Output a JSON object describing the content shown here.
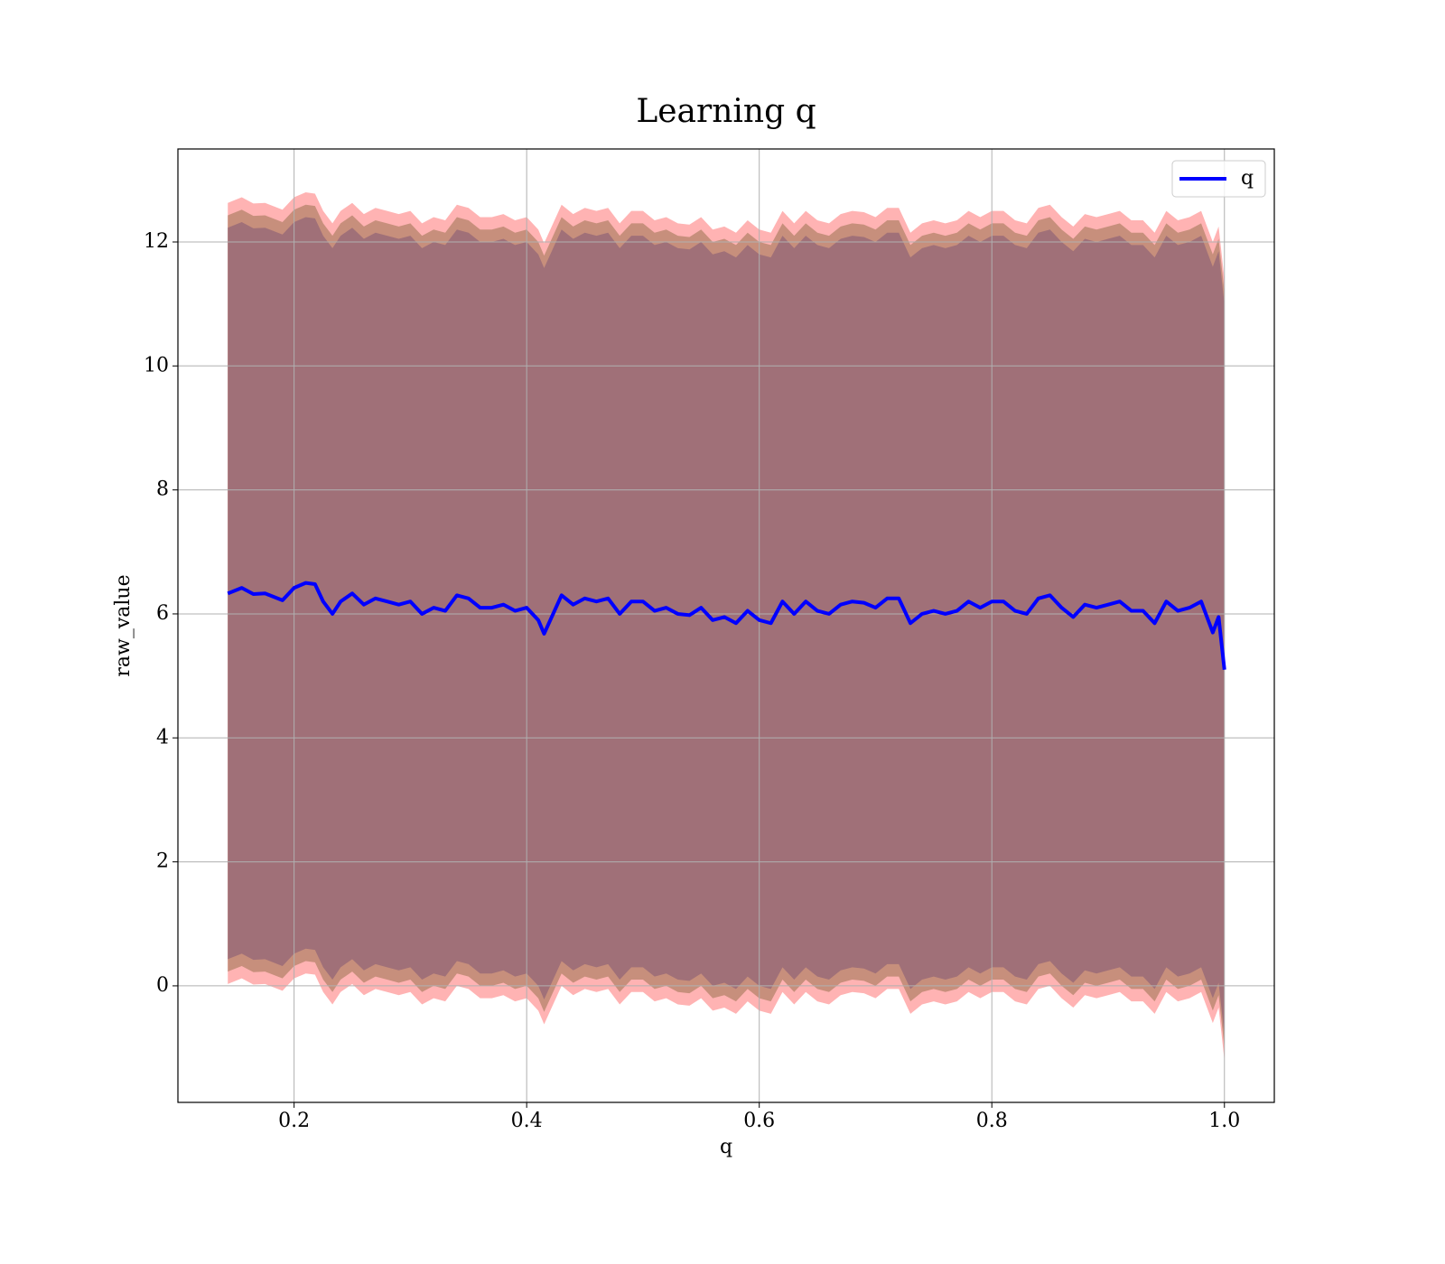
{
  "chart_data": {
    "type": "line",
    "title": "Learning q",
    "xlabel": "q",
    "ylabel": "raw_value",
    "x": [
      0.143,
      0.155,
      0.165,
      0.175,
      0.19,
      0.2,
      0.21,
      0.218,
      0.225,
      0.233,
      0.24,
      0.25,
      0.26,
      0.27,
      0.28,
      0.29,
      0.3,
      0.31,
      0.32,
      0.33,
      0.34,
      0.35,
      0.36,
      0.37,
      0.38,
      0.39,
      0.4,
      0.41,
      0.415,
      0.43,
      0.44,
      0.45,
      0.46,
      0.47,
      0.48,
      0.49,
      0.5,
      0.51,
      0.52,
      0.53,
      0.54,
      0.55,
      0.56,
      0.57,
      0.58,
      0.59,
      0.6,
      0.61,
      0.62,
      0.63,
      0.64,
      0.65,
      0.66,
      0.67,
      0.68,
      0.69,
      0.7,
      0.71,
      0.72,
      0.73,
      0.74,
      0.75,
      0.76,
      0.77,
      0.78,
      0.79,
      0.8,
      0.81,
      0.82,
      0.83,
      0.84,
      0.85,
      0.86,
      0.87,
      0.88,
      0.89,
      0.9,
      0.91,
      0.92,
      0.93,
      0.94,
      0.95,
      0.96,
      0.97,
      0.98,
      0.99,
      0.995,
      1.0
    ],
    "series": [
      {
        "name": "q",
        "color": "#0000ff",
        "values": [
          6.33,
          6.42,
          6.32,
          6.33,
          6.22,
          6.42,
          6.5,
          6.48,
          6.2,
          6.0,
          6.2,
          6.33,
          6.15,
          6.25,
          6.2,
          6.15,
          6.2,
          6.0,
          6.1,
          6.05,
          6.3,
          6.25,
          6.1,
          6.1,
          6.15,
          6.05,
          6.1,
          5.9,
          5.68,
          6.3,
          6.15,
          6.25,
          6.2,
          6.25,
          6.0,
          6.2,
          6.2,
          6.05,
          6.1,
          6.0,
          5.98,
          6.1,
          5.9,
          5.95,
          5.85,
          6.05,
          5.9,
          5.85,
          6.2,
          6.0,
          6.2,
          6.05,
          6.0,
          6.15,
          6.2,
          6.18,
          6.1,
          6.25,
          6.25,
          5.85,
          6.0,
          6.05,
          6.0,
          6.05,
          6.2,
          6.1,
          6.2,
          6.2,
          6.05,
          6.0,
          6.25,
          6.3,
          6.1,
          5.95,
          6.15,
          6.1,
          6.15,
          6.2,
          6.05,
          6.05,
          5.85,
          6.2,
          6.05,
          6.1,
          6.2,
          5.7,
          5.95,
          5.1
        ]
      }
    ],
    "bands": [
      {
        "color": "#ffb3b3",
        "upper": [
          12.63,
          12.72,
          12.62,
          12.63,
          12.52,
          12.72,
          12.8,
          12.78,
          12.5,
          12.3,
          12.5,
          12.63,
          12.45,
          12.55,
          12.5,
          12.45,
          12.5,
          12.3,
          12.4,
          12.35,
          12.6,
          12.55,
          12.4,
          12.4,
          12.45,
          12.35,
          12.4,
          12.2,
          11.98,
          12.6,
          12.45,
          12.55,
          12.5,
          12.55,
          12.3,
          12.5,
          12.5,
          12.35,
          12.4,
          12.3,
          12.28,
          12.4,
          12.2,
          12.25,
          12.15,
          12.35,
          12.2,
          12.15,
          12.5,
          12.3,
          12.5,
          12.35,
          12.3,
          12.45,
          12.5,
          12.48,
          12.4,
          12.55,
          12.55,
          12.15,
          12.3,
          12.35,
          12.3,
          12.35,
          12.5,
          12.4,
          12.5,
          12.5,
          12.35,
          12.3,
          12.55,
          12.6,
          12.4,
          12.25,
          12.45,
          12.4,
          12.45,
          12.5,
          12.35,
          12.35,
          12.15,
          12.5,
          12.35,
          12.4,
          12.5,
          12,
          12.25,
          11.4
        ],
        "lower": [
          0.03,
          0.12,
          0.02,
          0.03,
          -0.08,
          0.12,
          0.2,
          0.18,
          -0.1,
          -0.3,
          -0.1,
          0.03,
          -0.15,
          -0.05,
          -0.1,
          -0.15,
          -0.1,
          -0.3,
          -0.2,
          -0.25,
          0,
          -0.05,
          -0.2,
          -0.2,
          -0.15,
          -0.25,
          -0.2,
          -0.4,
          -0.62,
          0,
          -0.15,
          -0.05,
          -0.1,
          -0.05,
          -0.3,
          -0.1,
          -0.1,
          -0.25,
          -0.2,
          -0.3,
          -0.32,
          -0.2,
          -0.4,
          -0.35,
          -0.45,
          -0.25,
          -0.4,
          -0.45,
          -0.1,
          -0.3,
          -0.1,
          -0.25,
          -0.3,
          -0.15,
          -0.1,
          -0.12,
          -0.2,
          -0.05,
          -0.05,
          -0.45,
          -0.3,
          -0.25,
          -0.3,
          -0.25,
          -0.1,
          -0.2,
          -0.1,
          -0.1,
          -0.25,
          -0.3,
          -0.05,
          0,
          -0.2,
          -0.35,
          -0.15,
          -0.2,
          -0.15,
          -0.1,
          -0.25,
          -0.25,
          -0.45,
          -0.1,
          -0.25,
          -0.2,
          -0.1,
          -0.6,
          -0.35,
          -1.2
        ]
      },
      {
        "color": "#c78f7c",
        "upper": [
          12.43,
          12.52,
          12.42,
          12.43,
          12.32,
          12.52,
          12.6,
          12.58,
          12.3,
          12.1,
          12.3,
          12.43,
          12.25,
          12.35,
          12.3,
          12.25,
          12.3,
          12.1,
          12.2,
          12.15,
          12.4,
          12.35,
          12.2,
          12.2,
          12.25,
          12.15,
          12.2,
          12,
          11.78,
          12.4,
          12.25,
          12.35,
          12.3,
          12.35,
          12.1,
          12.3,
          12.3,
          12.15,
          12.2,
          12.1,
          12.08,
          12.2,
          12,
          12.05,
          11.95,
          12.15,
          12,
          11.95,
          12.3,
          12.1,
          12.3,
          12.15,
          12.1,
          12.25,
          12.3,
          12.28,
          12.2,
          12.35,
          12.35,
          11.95,
          12.1,
          12.15,
          12.1,
          12.15,
          12.3,
          12.2,
          12.3,
          12.3,
          12.15,
          12.1,
          12.35,
          12.4,
          12.2,
          12.05,
          12.25,
          12.2,
          12.25,
          12.3,
          12.15,
          12.15,
          11.95,
          12.3,
          12.15,
          12.2,
          12.3,
          11.8,
          12.05,
          11.2
        ],
        "lower": [
          0.23,
          0.32,
          0.22,
          0.23,
          0.12,
          0.32,
          0.4,
          0.38,
          0.1,
          -0.1,
          0.1,
          0.23,
          0.05,
          0.15,
          0.1,
          0.05,
          0.1,
          -0.1,
          0,
          -0.05,
          0.2,
          0.15,
          0,
          0,
          0.05,
          -0.05,
          0,
          -0.2,
          -0.42,
          0.2,
          0.05,
          0.15,
          0.1,
          0.15,
          -0.1,
          0.1,
          0.1,
          -0.05,
          0,
          -0.1,
          -0.12,
          0,
          -0.2,
          -0.15,
          -0.25,
          -0.05,
          -0.2,
          -0.25,
          0.1,
          -0.1,
          0.1,
          -0.05,
          -0.1,
          0.05,
          0.1,
          0.08,
          0,
          0.15,
          0.15,
          -0.25,
          -0.1,
          -0.05,
          -0.1,
          -0.05,
          0.1,
          0,
          0.1,
          0.1,
          -0.05,
          -0.1,
          0.15,
          0.2,
          0,
          -0.15,
          0.05,
          0,
          0.05,
          0.1,
          -0.05,
          -0.05,
          -0.25,
          0.1,
          -0.05,
          0,
          0.1,
          -0.4,
          -0.15,
          -1
        ]
      },
      {
        "color": "#a07078",
        "upper": [
          12.23,
          12.32,
          12.22,
          12.23,
          12.12,
          12.32,
          12.4,
          12.38,
          12.1,
          11.9,
          12.1,
          12.23,
          12.05,
          12.15,
          12.1,
          12.05,
          12.1,
          11.9,
          12,
          11.95,
          12.2,
          12.15,
          12,
          12,
          12.05,
          11.95,
          12,
          11.8,
          11.58,
          12.2,
          12.05,
          12.15,
          12.1,
          12.15,
          11.9,
          12.1,
          12.1,
          11.95,
          12,
          11.9,
          11.88,
          12,
          11.8,
          11.85,
          11.75,
          11.95,
          11.8,
          11.75,
          12.1,
          11.9,
          12.1,
          11.95,
          11.9,
          12.05,
          12.1,
          12.08,
          12,
          12.15,
          12.15,
          11.75,
          11.9,
          11.95,
          11.9,
          11.95,
          12.1,
          12,
          12.1,
          12.1,
          11.95,
          11.9,
          12.15,
          12.2,
          12,
          11.85,
          12.05,
          12,
          12.05,
          12.1,
          11.95,
          11.95,
          11.75,
          12.1,
          11.95,
          12,
          12.1,
          11.6,
          11.85,
          11
        ],
        "lower": [
          0.43,
          0.52,
          0.42,
          0.43,
          0.32,
          0.52,
          0.6,
          0.58,
          0.3,
          0.1,
          0.3,
          0.43,
          0.25,
          0.35,
          0.3,
          0.25,
          0.3,
          0.1,
          0.2,
          0.15,
          0.4,
          0.35,
          0.2,
          0.2,
          0.25,
          0.15,
          0.2,
          0,
          -0.22,
          0.4,
          0.25,
          0.35,
          0.3,
          0.35,
          0.1,
          0.3,
          0.3,
          0.15,
          0.2,
          0.1,
          0.08,
          0.2,
          0,
          0.05,
          -0.05,
          0.15,
          0,
          -0.05,
          0.3,
          0.1,
          0.3,
          0.15,
          0.1,
          0.25,
          0.3,
          0.28,
          0.2,
          0.35,
          0.35,
          -0.05,
          0.1,
          0.15,
          0.1,
          0.15,
          0.3,
          0.2,
          0.3,
          0.3,
          0.15,
          0.1,
          0.35,
          0.4,
          0.2,
          0.05,
          0.25,
          0.2,
          0.25,
          0.3,
          0.15,
          0.15,
          -0.05,
          0.3,
          0.15,
          0.2,
          0.3,
          -0.2,
          0.05,
          -0.8
        ]
      }
    ],
    "xlim": [
      0.1001,
      1.0429
    ],
    "ylim": [
      -1.88,
      13.5
    ],
    "xticks": [
      0.2,
      0.4,
      0.6,
      0.8,
      {
        "value": 1,
        "label": "1.0"
      }
    ],
    "yticks": [
      0,
      2,
      4,
      6,
      8,
      10,
      12
    ],
    "grid": true,
    "legend": "upper right"
  }
}
